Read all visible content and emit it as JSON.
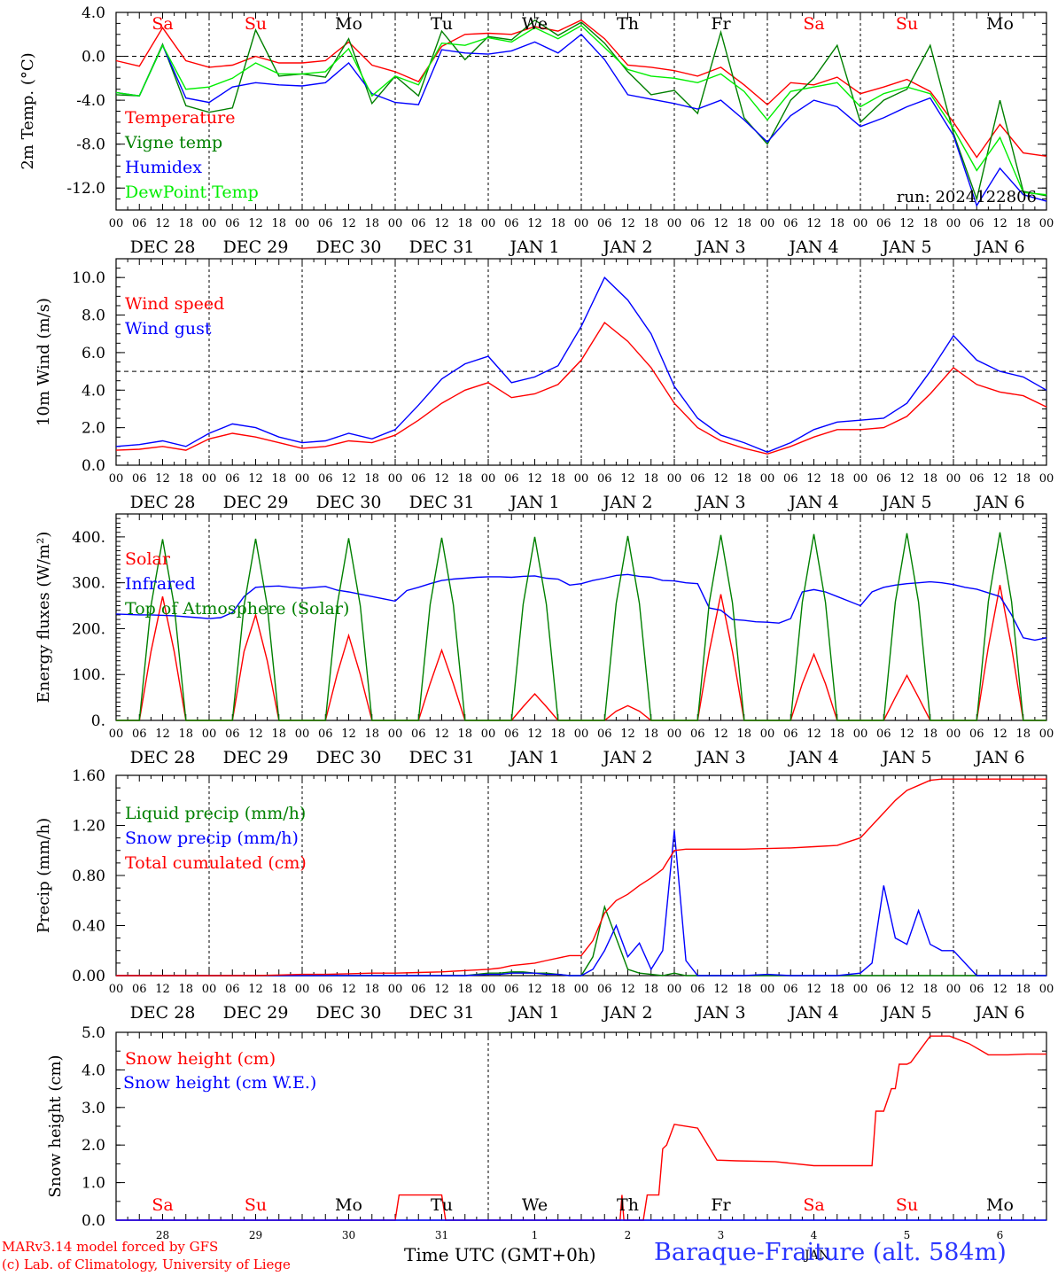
{
  "footer": {
    "credit_line1": "MARv3.14 model forced by GFS",
    "credit_line2": "(c) Lab. of Climatology, University of Liege",
    "x_title": "Time UTC (GMT+0h)",
    "station": "Baraque-Fraiture (alt. 584m)"
  },
  "hour_ticks": [
    "00",
    "06",
    "12",
    "18"
  ],
  "date_labels": [
    "DEC 28",
    "DEC 29",
    "DEC 30",
    "DEC 31",
    "JAN  1",
    "JAN  2",
    "JAN  3",
    "JAN  4",
    "JAN  5",
    "JAN  6"
  ],
  "bottom_day_numbers": [
    "28",
    "29",
    "30",
    "31",
    "1",
    "2",
    "3",
    "4",
    "5",
    "6"
  ],
  "bottom_month_label": "JAN",
  "weekday_labels": [
    {
      "text": "Sa",
      "color": "#ff0000"
    },
    {
      "text": "Su",
      "color": "#ff0000"
    },
    {
      "text": "Mo",
      "color": "#000000"
    },
    {
      "text": "Tu",
      "color": "#000000"
    },
    {
      "text": "We",
      "color": "#000000"
    },
    {
      "text": "Th",
      "color": "#000000"
    },
    {
      "text": "Fr",
      "color": "#000000"
    },
    {
      "text": "Sa",
      "color": "#ff0000"
    },
    {
      "text": "Su",
      "color": "#ff0000"
    },
    {
      "text": "Mo",
      "color": "#000000"
    }
  ],
  "colors": {
    "red": "#ff0000",
    "green": "#008000",
    "blue": "#0000ff",
    "lightgreen": "#00ee00"
  },
  "chart_data": [
    {
      "type": "line",
      "ylabel": "2m Temp. (°C)",
      "ylim": [
        -14,
        4
      ],
      "yticks": [
        "4.0",
        "0.0",
        "-4.0",
        "-8.0",
        "-12.0"
      ],
      "annotation": "run: 2024122806",
      "x": [
        0,
        6,
        12,
        18,
        24,
        30,
        36,
        42,
        48,
        54,
        60,
        66,
        72,
        78,
        84,
        90,
        96,
        102,
        108,
        114,
        120,
        126,
        132,
        138,
        144,
        150,
        156,
        162,
        168,
        174,
        180,
        186,
        192,
        198,
        204,
        210,
        216,
        222,
        228,
        234,
        240
      ],
      "series": [
        {
          "name": "Temperature",
          "color": "#ff0000",
          "values": [
            -0.4,
            -0.9,
            2.6,
            -0.4,
            -1.0,
            -0.8,
            0.0,
            -0.6,
            -0.6,
            -0.4,
            1.3,
            -0.8,
            -1.4,
            -2.3,
            0.9,
            2.0,
            2.1,
            2.0,
            2.7,
            2.3,
            3.3,
            1.6,
            -0.8,
            -1.0,
            -1.3,
            -1.8,
            -1.0,
            -2.6,
            -4.4,
            -2.4,
            -2.6,
            -1.9,
            -3.4,
            -2.8,
            -2.1,
            -3.2,
            -6.0,
            -9.2,
            -6.2,
            -8.8,
            -9.1
          ]
        },
        {
          "name": "Vigne temp",
          "color": "#008000",
          "values": [
            -3.5,
            -3.6,
            1.1,
            -4.5,
            -5.1,
            -4.7,
            2.4,
            -1.8,
            -1.6,
            -1.9,
            1.6,
            -4.3,
            -1.8,
            -3.6,
            2.3,
            -0.3,
            1.8,
            1.5,
            3.3,
            1.9,
            3.1,
            1.2,
            -1.4,
            -3.5,
            -3.1,
            -5.2,
            2.2,
            -5.6,
            -8.0,
            -4.0,
            -2.0,
            1.0,
            -6.0,
            -4.0,
            -3.0,
            1.0,
            -7.0,
            -13.0,
            -4.0,
            -12.3,
            -12.7
          ]
        },
        {
          "name": "Humidex",
          "color": "#0000ff",
          "values": [
            -3.3,
            -3.6,
            1.0,
            -3.8,
            -4.2,
            -2.8,
            -2.4,
            -2.6,
            -2.7,
            -2.4,
            -0.6,
            -3.4,
            -4.2,
            -4.4,
            0.6,
            0.3,
            0.2,
            0.5,
            1.3,
            0.3,
            2.0,
            -0.3,
            -3.5,
            -3.9,
            -4.3,
            -4.8,
            -4.0,
            -5.8,
            -7.8,
            -5.4,
            -4.0,
            -4.6,
            -6.4,
            -5.6,
            -4.6,
            -3.8,
            -7.2,
            -13.6,
            -10.2,
            -12.6,
            -13.2
          ]
        },
        {
          "name": "DewPoint Temp",
          "color": "#00ee00",
          "values": [
            -3.3,
            -3.6,
            1.0,
            -3.0,
            -2.8,
            -2.0,
            -0.6,
            -1.6,
            -1.6,
            -1.4,
            0.7,
            -3.6,
            -1.8,
            -2.6,
            1.2,
            1.0,
            1.7,
            1.3,
            2.6,
            1.6,
            2.8,
            0.8,
            -1.2,
            -1.8,
            -2.0,
            -2.4,
            -1.6,
            -3.2,
            -5.8,
            -3.2,
            -2.8,
            -2.4,
            -4.6,
            -3.4,
            -2.8,
            -3.4,
            -6.6,
            -10.4,
            -7.4,
            -12.4,
            -12.6
          ]
        }
      ]
    },
    {
      "type": "line",
      "ylabel": "10m Wind (m/s)",
      "ylim": [
        0,
        11
      ],
      "yticks": [
        "10.0",
        "8.0",
        "6.0",
        "4.0",
        "2.0",
        "0.0"
      ],
      "refline": 5,
      "x": [
        0,
        6,
        12,
        18,
        24,
        30,
        36,
        42,
        48,
        54,
        60,
        66,
        72,
        78,
        84,
        90,
        96,
        102,
        108,
        114,
        120,
        126,
        132,
        138,
        144,
        150,
        156,
        162,
        168,
        174,
        180,
        186,
        192,
        198,
        204,
        210,
        216,
        222,
        228,
        234,
        240
      ],
      "series": [
        {
          "name": "Wind speed",
          "color": "#ff0000",
          "values": [
            0.8,
            0.85,
            1.0,
            0.8,
            1.4,
            1.7,
            1.5,
            1.2,
            0.9,
            1.0,
            1.3,
            1.2,
            1.6,
            2.4,
            3.3,
            4.0,
            4.4,
            3.6,
            3.8,
            4.3,
            5.6,
            7.6,
            6.6,
            5.2,
            3.3,
            2.0,
            1.3,
            0.9,
            0.6,
            1.0,
            1.5,
            1.9,
            1.9,
            2.0,
            2.6,
            3.8,
            5.2,
            4.3,
            3.9,
            3.7,
            3.1
          ]
        },
        {
          "name": "Wind gust",
          "color": "#0000ff",
          "values": [
            1.0,
            1.1,
            1.3,
            1.0,
            1.7,
            2.2,
            2.0,
            1.5,
            1.2,
            1.3,
            1.7,
            1.4,
            1.9,
            3.2,
            4.6,
            5.4,
            5.8,
            4.4,
            4.7,
            5.3,
            7.4,
            10.0,
            8.8,
            7.0,
            4.2,
            2.5,
            1.6,
            1.2,
            0.7,
            1.2,
            1.9,
            2.3,
            2.4,
            2.5,
            3.3,
            5.0,
            6.9,
            5.6,
            5.0,
            4.7,
            4.0
          ]
        }
      ]
    },
    {
      "type": "line",
      "ylabel": "Energy fluxes (W/m²)",
      "ylim": [
        0,
        450
      ],
      "yticks": [
        "400.",
        "300.",
        "200.",
        "100.",
        "0."
      ],
      "x": [
        0,
        3,
        6,
        9,
        12,
        15,
        18,
        21,
        24,
        27,
        30,
        33,
        36,
        39,
        42,
        45,
        48,
        51,
        54,
        57,
        60,
        63,
        66,
        69,
        72,
        75,
        78,
        81,
        84,
        87,
        90,
        93,
        96,
        99,
        102,
        105,
        108,
        111,
        114,
        117,
        120,
        123,
        126,
        129,
        132,
        135,
        138,
        141,
        144,
        147,
        150,
        153,
        156,
        159,
        162,
        165,
        168,
        171,
        174,
        177,
        180,
        183,
        186,
        189,
        192,
        195,
        198,
        201,
        204,
        207,
        210,
        213,
        216,
        219,
        222,
        225,
        228,
        231,
        234,
        237,
        240
      ],
      "series": [
        {
          "name": "Solar",
          "color": "#ff0000",
          "values": [
            0,
            0,
            0,
            150,
            270,
            150,
            0,
            0,
            0,
            0,
            0,
            150,
            230,
            130,
            0,
            0,
            0,
            0,
            0,
            100,
            185,
            100,
            0,
            0,
            0,
            0,
            0,
            80,
            153,
            80,
            0,
            0,
            0,
            0,
            0,
            30,
            58,
            30,
            0,
            0,
            0,
            0,
            0,
            20,
            32,
            20,
            0,
            0,
            0,
            0,
            0,
            150,
            275,
            150,
            0,
            0,
            0,
            0,
            0,
            80,
            144,
            80,
            0,
            0,
            0,
            0,
            0,
            50,
            98,
            50,
            0,
            0,
            0,
            0,
            0,
            160,
            295,
            160,
            0,
            0,
            0
          ]
        },
        {
          "name": "Infrared",
          "color": "#0000ff",
          "values": [
            232,
            231,
            230,
            230,
            229,
            228,
            226,
            224,
            222,
            224,
            235,
            270,
            290,
            292,
            293,
            290,
            288,
            290,
            292,
            284,
            280,
            275,
            270,
            265,
            260,
            283,
            290,
            298,
            305,
            308,
            310,
            312,
            313,
            313,
            312,
            314,
            315,
            310,
            308,
            295,
            298,
            305,
            310,
            316,
            318,
            314,
            312,
            305,
            304,
            300,
            298,
            245,
            240,
            220,
            218,
            215,
            214,
            212,
            222,
            280,
            285,
            280,
            270,
            260,
            250,
            280,
            290,
            295,
            298,
            300,
            302,
            300,
            296,
            290,
            286,
            278,
            270,
            230,
            180,
            175,
            180
          ]
        },
        {
          "name": "Top of Atmosphere (Solar)",
          "color": "#008000",
          "values": [
            0,
            0,
            0,
            250,
            395,
            250,
            0,
            0,
            0,
            0,
            0,
            250,
            396,
            250,
            0,
            0,
            0,
            0,
            0,
            250,
            397,
            250,
            0,
            0,
            0,
            0,
            0,
            252,
            398,
            252,
            0,
            0,
            0,
            0,
            0,
            253,
            400,
            253,
            0,
            0,
            0,
            0,
            0,
            255,
            402,
            255,
            0,
            0,
            0,
            0,
            0,
            256,
            404,
            256,
            0,
            0,
            0,
            0,
            0,
            257,
            406,
            257,
            0,
            0,
            0,
            0,
            0,
            258,
            408,
            258,
            0,
            0,
            0,
            0,
            0,
            259,
            410,
            259,
            0,
            0,
            0
          ]
        }
      ]
    },
    {
      "type": "line",
      "ylabel": "Precip (mm/h)",
      "ylim": [
        0,
        1.6
      ],
      "yticks": [
        "1.60",
        "1.20",
        "0.80",
        "0.40",
        "0.00"
      ],
      "x": [
        0,
        6,
        12,
        18,
        24,
        30,
        36,
        42,
        48,
        54,
        60,
        66,
        72,
        78,
        84,
        90,
        96,
        99,
        102,
        105,
        108,
        111,
        114,
        117,
        120,
        123,
        126,
        129,
        132,
        135,
        138,
        141,
        144,
        147,
        150,
        156,
        162,
        168,
        174,
        180,
        186,
        192,
        195,
        198,
        201,
        204,
        207,
        210,
        213,
        216,
        222,
        228,
        234,
        240
      ],
      "series": [
        {
          "name": "Liquid precip (mm/h)",
          "color": "#008000",
          "values": [
            0,
            0,
            0,
            0,
            0,
            0,
            0,
            0,
            0,
            0,
            0,
            0,
            0,
            0,
            0,
            0,
            0.02,
            0.02,
            0.03,
            0.03,
            0.02,
            0.02,
            0.01,
            0,
            0,
            0.15,
            0.55,
            0.3,
            0.05,
            0.02,
            0.01,
            0,
            0.02,
            0,
            0,
            0,
            0,
            0,
            0,
            0,
            0,
            0,
            0,
            0,
            0,
            0,
            0,
            0,
            0,
            0,
            0,
            0,
            0,
            0
          ]
        },
        {
          "name": "Snow precip (mm/h)",
          "color": "#0000ff",
          "values": [
            0,
            0,
            0,
            0,
            0,
            0,
            0,
            0,
            0,
            0,
            0,
            0,
            0,
            0,
            0,
            0,
            0.01,
            0.01,
            0.02,
            0.02,
            0.02,
            0.01,
            0.01,
            0,
            0,
            0.05,
            0.2,
            0.4,
            0.15,
            0.26,
            0.05,
            0.2,
            1.16,
            0.12,
            0,
            0,
            0,
            0.01,
            0,
            0,
            0,
            0.02,
            0.1,
            0.72,
            0.3,
            0.25,
            0.52,
            0.25,
            0.2,
            0.2,
            0,
            0,
            0,
            0
          ]
        },
        {
          "name": "Total cumulated (cm)",
          "color": "#ff0000",
          "values": [
            0,
            0,
            0,
            0,
            0,
            0,
            0,
            0.005,
            0.01,
            0.01,
            0.015,
            0.02,
            0.02,
            0.025,
            0.03,
            0.04,
            0.05,
            0.06,
            0.08,
            0.09,
            0.1,
            0.12,
            0.14,
            0.16,
            0.16,
            0.28,
            0.5,
            0.6,
            0.65,
            0.72,
            0.78,
            0.85,
            1.0,
            1.01,
            1.01,
            1.01,
            1.01,
            1.015,
            1.02,
            1.03,
            1.04,
            1.1,
            1.2,
            1.3,
            1.4,
            1.48,
            1.52,
            1.56,
            1.57,
            1.57,
            1.57,
            1.57,
            1.57,
            1.57
          ]
        }
      ]
    },
    {
      "type": "line",
      "ylabel": "Snow height (cm)",
      "ylim": [
        0,
        5
      ],
      "yticks": [
        "5.0",
        "4.0",
        "3.0",
        "2.0",
        "1.0",
        "0.0"
      ],
      "x": [
        0,
        24,
        48,
        72,
        73,
        84,
        85,
        96,
        120,
        130,
        130.5,
        131,
        132,
        136,
        137,
        138,
        140,
        141,
        142,
        144,
        150,
        155,
        160,
        170,
        180,
        190,
        195,
        196,
        198,
        200,
        201,
        202,
        204,
        205,
        210,
        215,
        220,
        225,
        230,
        235,
        240
      ],
      "series": [
        {
          "name": "Snow height (cm)",
          "color": "#ff0000",
          "values": [
            0,
            0,
            0,
            0,
            0.67,
            0.67,
            0,
            0,
            0,
            0,
            0.67,
            0,
            0,
            0,
            0.67,
            0.67,
            0.67,
            1.9,
            2.0,
            2.55,
            2.45,
            1.6,
            1.58,
            1.56,
            1.45,
            1.45,
            1.45,
            2.9,
            2.9,
            3.5,
            3.5,
            4.15,
            4.15,
            4.2,
            4.9,
            4.9,
            4.7,
            4.4,
            4.4,
            4.42,
            4.42
          ]
        },
        {
          "name": "Snow height (cm W.E.)",
          "color": "#0000ff",
          "values": [
            0,
            0,
            0,
            0,
            0,
            0,
            0,
            0,
            0,
            0,
            0,
            0,
            0,
            0,
            0,
            0,
            0,
            0,
            0,
            0,
            0,
            0,
            0,
            0,
            0,
            0,
            0,
            0,
            0,
            0,
            0,
            0,
            0,
            0,
            0,
            0,
            0,
            0,
            0,
            0,
            0
          ]
        }
      ]
    }
  ]
}
